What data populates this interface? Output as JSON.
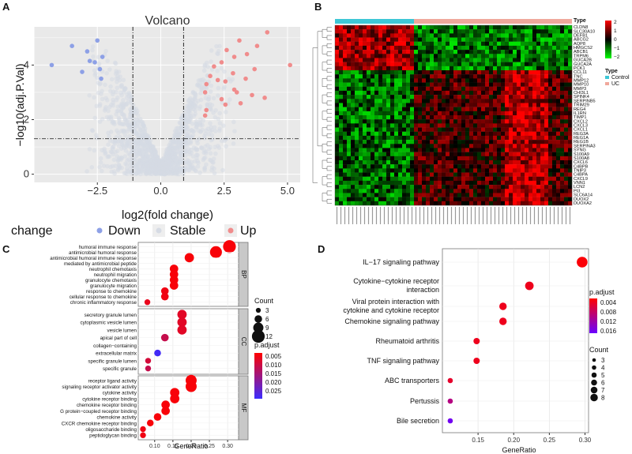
{
  "panels": {
    "A": "A",
    "B": "B",
    "C": "C",
    "D": "D"
  },
  "chart_data": [
    {
      "panel": "A",
      "type": "scatter",
      "title": "Volcano",
      "xlabel": "log2(fold change)",
      "ylabel": "−log10(adj.P.Val)",
      "xticks": [
        "−2.5",
        "0.0",
        "2.5",
        "5.0"
      ],
      "yticks": [
        "0",
        "2",
        "4"
      ],
      "xlim": [
        -5,
        5.5
      ],
      "ylim": [
        -0.3,
        5.4
      ],
      "thresholds": {
        "x": [
          -1.1,
          0.9
        ],
        "y": 1.3
      },
      "legend": {
        "title": "change",
        "entries": [
          "Down",
          "Stable",
          "Up"
        ],
        "placement": "bottom"
      },
      "colors": {
        "Down": "#8da0e6",
        "Stable": "#d6dbe4",
        "Up": "#f08c8c"
      },
      "down_points": [
        [
          -4.3,
          4.0
        ],
        [
          -3.5,
          4.7
        ],
        [
          -2.9,
          4.5
        ],
        [
          -2.8,
          4.15
        ],
        [
          -2.6,
          4.1
        ],
        [
          -2.4,
          3.85
        ],
        [
          -2.3,
          4.3
        ],
        [
          -2.5,
          4.9
        ],
        [
          -3.1,
          3.75
        ],
        [
          -2.35,
          3.5
        ]
      ],
      "up_points": [
        [
          4.2,
          5.2
        ],
        [
          5.1,
          4.0
        ],
        [
          3.8,
          4.7
        ],
        [
          3.4,
          4.4
        ],
        [
          3.1,
          4.9
        ],
        [
          2.9,
          4.3
        ],
        [
          2.6,
          4.55
        ],
        [
          2.4,
          4.1
        ],
        [
          2.1,
          3.95
        ],
        [
          3.7,
          3.85
        ],
        [
          3.35,
          3.5
        ],
        [
          2.85,
          3.7
        ],
        [
          2.55,
          3.4
        ],
        [
          2.25,
          3.45
        ],
        [
          1.95,
          3.6
        ],
        [
          1.8,
          3.3
        ],
        [
          1.75,
          3.0
        ],
        [
          3.0,
          3.0
        ],
        [
          3.6,
          2.9
        ],
        [
          2.4,
          2.75
        ],
        [
          3.15,
          2.6
        ],
        [
          2.55,
          2.55
        ],
        [
          1.8,
          2.35
        ],
        [
          4.1,
          2.8
        ],
        [
          1.75,
          2.15
        ],
        [
          2.9,
          3.1
        ]
      ]
    },
    {
      "panel": "B",
      "type": "heatmap",
      "legend_title": "Type",
      "group_title": "Type",
      "groups": [
        "Control",
        "UC"
      ],
      "group_colors": {
        "Control": "#3ec7d6",
        "UC": "#f0a89c"
      },
      "scale_ticks": [
        "2",
        "1",
        "0",
        "−1",
        "−2"
      ],
      "genes": [
        "CLDN8",
        "SLC30A10",
        "DEFB1",
        "ABCG2",
        "AQP8",
        "HMGCS2",
        "ABCB1",
        "TRPM6",
        "GUCA2B",
        "GUCA2A",
        "PCK1",
        "CCL11",
        "TNC",
        "MMP12",
        "MMP10",
        "MMP3",
        "CHI3L1",
        "SPINK4",
        "SERPINB5",
        "TRIM29",
        "REG4",
        "IL1RN",
        "TIMP1",
        "CXCL2",
        "CXCL3",
        "CXCL1",
        "REG3A",
        "REG1A",
        "REG1B",
        "SERPINA3",
        "SYNG",
        "S100A9",
        "S100A8",
        "CXCL6",
        "C4BPB",
        "TNIP3",
        "C4BPA",
        "CXCL9",
        "VNN1",
        "LCN2",
        "PI3",
        "SLC6A14",
        "DUOX2",
        "DUOXA2"
      ]
    },
    {
      "panel": "C",
      "type": "scatter",
      "xlabel": "GeneRatio",
      "xticks": [
        "0.10",
        "0.15",
        "0.20",
        "0.25",
        "0.30"
      ],
      "xlim": [
        0.055,
        0.33
      ],
      "facets": [
        "BP",
        "CC",
        "MF"
      ],
      "size_legend": {
        "title": "Count",
        "values": [
          "3",
          "6",
          "9",
          "12"
        ]
      },
      "color_legend": {
        "title": "p.adjust",
        "values": [
          "0.005",
          "0.010",
          "0.015",
          "0.020",
          "0.025"
        ]
      },
      "terms": [
        {
          "facet": "BP",
          "label": "humoral immune response",
          "x": 0.305,
          "count": 12,
          "p": 0.001
        },
        {
          "facet": "BP",
          "label": "antimicrobial humoral response",
          "x": 0.268,
          "count": 11,
          "p": 0.001
        },
        {
          "facet": "BP",
          "label": "antimicrobial humoral immune response",
          "x": 0.195,
          "count": 8,
          "p": 0.001
        },
        {
          "facet": "BP",
          "label": "mediated by antimicrobial peptide",
          "x": null,
          "count": null,
          "p": null
        },
        {
          "facet": "BP",
          "label": "neutrophil chemotaxis",
          "x": 0.153,
          "count": 7,
          "p": 0.001
        },
        {
          "facet": "BP",
          "label": "neutrophil migration",
          "x": 0.153,
          "count": 7,
          "p": 0.001
        },
        {
          "facet": "BP",
          "label": "granulocyte chemotaxis",
          "x": 0.153,
          "count": 7,
          "p": 0.001
        },
        {
          "facet": "BP",
          "label": "granulocyte migration",
          "x": 0.153,
          "count": 7,
          "p": 0.001
        },
        {
          "facet": "BP",
          "label": "response to chemokine",
          "x": 0.128,
          "count": 6,
          "p": 0.002
        },
        {
          "facet": "BP",
          "label": "cellular response to chemokine",
          "x": 0.128,
          "count": 6,
          "p": 0.002
        },
        {
          "facet": "BP",
          "label": "chronic inflammatory response",
          "x": 0.08,
          "count": 4,
          "p": 0.003
        },
        {
          "facet": "CC",
          "label": "secretory granule lumen",
          "x": 0.175,
          "count": 8,
          "p": 0.004
        },
        {
          "facet": "CC",
          "label": "cytoplasmic vesicle lumen",
          "x": 0.175,
          "count": 8,
          "p": 0.004
        },
        {
          "facet": "CC",
          "label": "vesicle lumen",
          "x": 0.175,
          "count": 8,
          "p": 0.004
        },
        {
          "facet": "CC",
          "label": "apical part of cell",
          "x": 0.128,
          "count": 6,
          "p": 0.008
        },
        {
          "facet": "CC",
          "label": "collagen−containing",
          "x": null,
          "count": null,
          "p": null
        },
        {
          "facet": "CC",
          "label": "extracellular matrix",
          "x": 0.108,
          "count": 5,
          "p": 0.026
        },
        {
          "facet": "CC",
          "label": "specific granule lumen",
          "x": 0.082,
          "count": 4,
          "p": 0.006
        },
        {
          "facet": "CC",
          "label": "specific granule",
          "x": 0.082,
          "count": 4,
          "p": 0.008
        },
        {
          "facet": "MF",
          "label": "receptor ligand activity",
          "x": 0.2,
          "count": 10,
          "p": 0.001
        },
        {
          "facet": "MF",
          "label": "signaling receptor activator activity",
          "x": 0.2,
          "count": 10,
          "p": 0.001
        },
        {
          "facet": "MF",
          "label": "cytokine activity",
          "x": 0.155,
          "count": 8,
          "p": 0.001
        },
        {
          "facet": "MF",
          "label": "cytokine receptor binding",
          "x": 0.155,
          "count": 8,
          "p": 0.001
        },
        {
          "facet": "MF",
          "label": "chemokine receptor binding",
          "x": 0.13,
          "count": 7,
          "p": 0.001
        },
        {
          "facet": "MF",
          "label": "G protein−coupled receptor binding",
          "x": 0.13,
          "count": 7,
          "p": 0.001
        },
        {
          "facet": "MF",
          "label": "chemokine activity",
          "x": 0.108,
          "count": 6,
          "p": 0.001
        },
        {
          "facet": "MF",
          "label": "CXCR chemokine receptor binding",
          "x": 0.088,
          "count": 5,
          "p": 0.001
        },
        {
          "facet": "MF",
          "label": "oligosaccharide binding",
          "x": 0.068,
          "count": 4,
          "p": 0.002
        },
        {
          "facet": "MF",
          "label": "peptidoglycan binding",
          "x": 0.068,
          "count": 4,
          "p": 0.002
        }
      ]
    },
    {
      "panel": "D",
      "type": "scatter",
      "xlabel": "GeneRatio",
      "xticks": [
        "0.15",
        "0.20",
        "0.25",
        "0.30"
      ],
      "xlim": [
        0.1,
        0.305
      ],
      "color_legend": {
        "title": "p.adjust",
        "values": [
          "0.004",
          "0.008",
          "0.012",
          "0.016"
        ]
      },
      "size_legend": {
        "title": "Count",
        "values": [
          "3",
          "4",
          "5",
          "6",
          "7",
          "8"
        ]
      },
      "terms": [
        {
          "label": "IL−17 signaling pathway",
          "x": 0.296,
          "count": 8,
          "p": 0.0005
        },
        {
          "label": "Cytokine−cytokine receptor",
          "label2": "interaction",
          "x": 0.222,
          "count": 6,
          "p": 0.002
        },
        {
          "label": "Viral protein interaction with",
          "label2": "cytokine and cytokine receptor",
          "x": 0.185,
          "count": 5,
          "p": 0.002
        },
        {
          "label": "Chemokine signaling pathway",
          "x": 0.185,
          "count": 5,
          "p": 0.002
        },
        {
          "label": "Rheumatoid arthritis",
          "x": 0.148,
          "count": 4,
          "p": 0.002
        },
        {
          "label": "TNF signaling pathway",
          "x": 0.148,
          "count": 4,
          "p": 0.002
        },
        {
          "label": "ABC transporters",
          "x": 0.111,
          "count": 3,
          "p": 0.003
        },
        {
          "label": "Pertussis",
          "x": 0.111,
          "count": 3,
          "p": 0.009
        },
        {
          "label": "Bile secretion",
          "x": 0.111,
          "count": 3,
          "p": 0.017
        }
      ]
    }
  ]
}
